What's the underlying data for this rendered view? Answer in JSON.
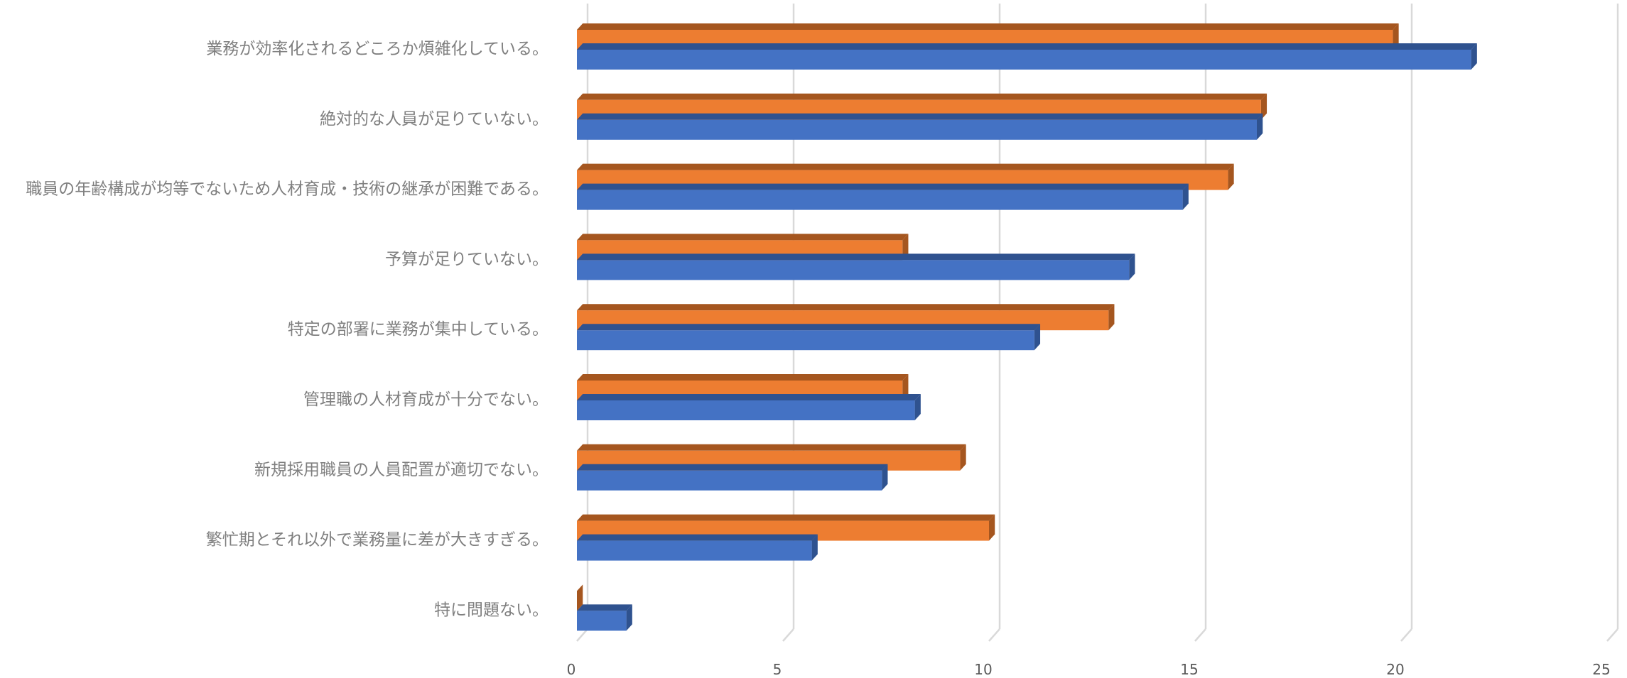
{
  "chart_data": {
    "type": "bar",
    "orientation": "horizontal",
    "style": "3d-clustered",
    "categories": [
      "業務が効率化されるどころか煩雑化している。",
      "絶対的な人員が足りていない。",
      "職員の年齢構成が均等でないため人材育成・技術の継承が困難である。",
      "予算が足りていない。",
      "特定の部署に業務が集中している。",
      "管理職の人材育成が十分でない。",
      "新規採用職員の人員配置が適切でない。",
      "繁忙期とそれ以外で業務量に差が大きすぎる。",
      "特に問題ない。"
    ],
    "series": [
      {
        "color": "#ED7D31",
        "side_color": "#A5561F",
        "values": [
          19.8,
          16.6,
          15.8,
          7.9,
          12.9,
          7.9,
          9.3,
          10.0,
          0.0
        ]
      },
      {
        "color": "#4472C4",
        "side_color": "#2F528F",
        "values": [
          21.7,
          16.5,
          14.7,
          13.4,
          11.1,
          8.2,
          7.4,
          5.7,
          1.2
        ]
      }
    ],
    "xlim": [
      0,
      25
    ],
    "x_ticks": [
      "0",
      "5",
      "10",
      "15",
      "20",
      "25"
    ],
    "grid": true,
    "legend": "none",
    "title": "",
    "xlabel": "",
    "ylabel": ""
  }
}
